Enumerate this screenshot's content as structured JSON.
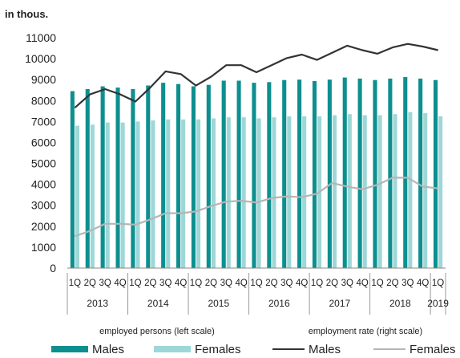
{
  "chart_data": {
    "type": "bar",
    "ylabel_left": "in thous.",
    "ylim_left": [
      0,
      11000
    ],
    "yticks_left": [
      "0",
      "1000",
      "2000",
      "3000",
      "4000",
      "5000",
      "6000",
      "7000",
      "8000",
      "9000",
      "10000",
      "11000"
    ],
    "ylim_right": [
      40,
      66
    ],
    "quarters": [
      "1Q",
      "2Q",
      "3Q",
      "4Q",
      "1Q",
      "2Q",
      "3Q",
      "4Q",
      "1Q",
      "2Q",
      "3Q",
      "4Q",
      "1Q",
      "2Q",
      "3Q",
      "4Q",
      "1Q",
      "2Q",
      "3Q",
      "4Q",
      "1Q",
      "2Q",
      "3Q",
      "4Q",
      "1Q"
    ],
    "years": [
      "2013",
      "2014",
      "2015",
      "2016",
      "2017",
      "2018",
      "2019"
    ],
    "bar_group_label": "employed persons (left scale)",
    "line_group_label": "employment rate (right scale)",
    "series": [
      {
        "name": "Males",
        "kind": "bar",
        "axis": "left",
        "color": "#0e8f8f",
        "values": [
          8450,
          8550,
          8680,
          8620,
          8550,
          8720,
          8850,
          8790,
          8680,
          8750,
          8950,
          8950,
          8850,
          8880,
          8980,
          9000,
          8930,
          9000,
          9100,
          9050,
          8980,
          9050,
          9120,
          9050,
          8980
        ]
      },
      {
        "name": "Females",
        "kind": "bar",
        "axis": "left",
        "color": "#9ed7d7",
        "values": [
          6800,
          6850,
          6950,
          6950,
          7000,
          7050,
          7100,
          7100,
          7100,
          7150,
          7200,
          7200,
          7150,
          7200,
          7250,
          7250,
          7250,
          7300,
          7350,
          7300,
          7300,
          7350,
          7450,
          7400,
          7250
        ]
      },
      {
        "name": "Males",
        "kind": "line",
        "axis": "right",
        "color": "#333333",
        "values": [
          58.1,
          59.6,
          60.2,
          59.6,
          58.8,
          60.4,
          62.2,
          61.9,
          60.6,
          61.6,
          62.9,
          62.9,
          62.1,
          62.9,
          63.7,
          64.1,
          63.5,
          64.3,
          65.1,
          64.6,
          64.2,
          64.9,
          65.3,
          65.0,
          64.6
        ]
      },
      {
        "name": "Females",
        "kind": "line",
        "axis": "right",
        "color": "#b5b5b5",
        "values": [
          43.6,
          44.2,
          45.0,
          45.0,
          44.9,
          45.5,
          46.2,
          46.2,
          46.4,
          47.0,
          47.5,
          47.6,
          47.4,
          47.9,
          48.1,
          48.0,
          48.4,
          49.6,
          49.2,
          48.9,
          49.4,
          50.2,
          50.2,
          49.2,
          49.0
        ]
      }
    ]
  }
}
